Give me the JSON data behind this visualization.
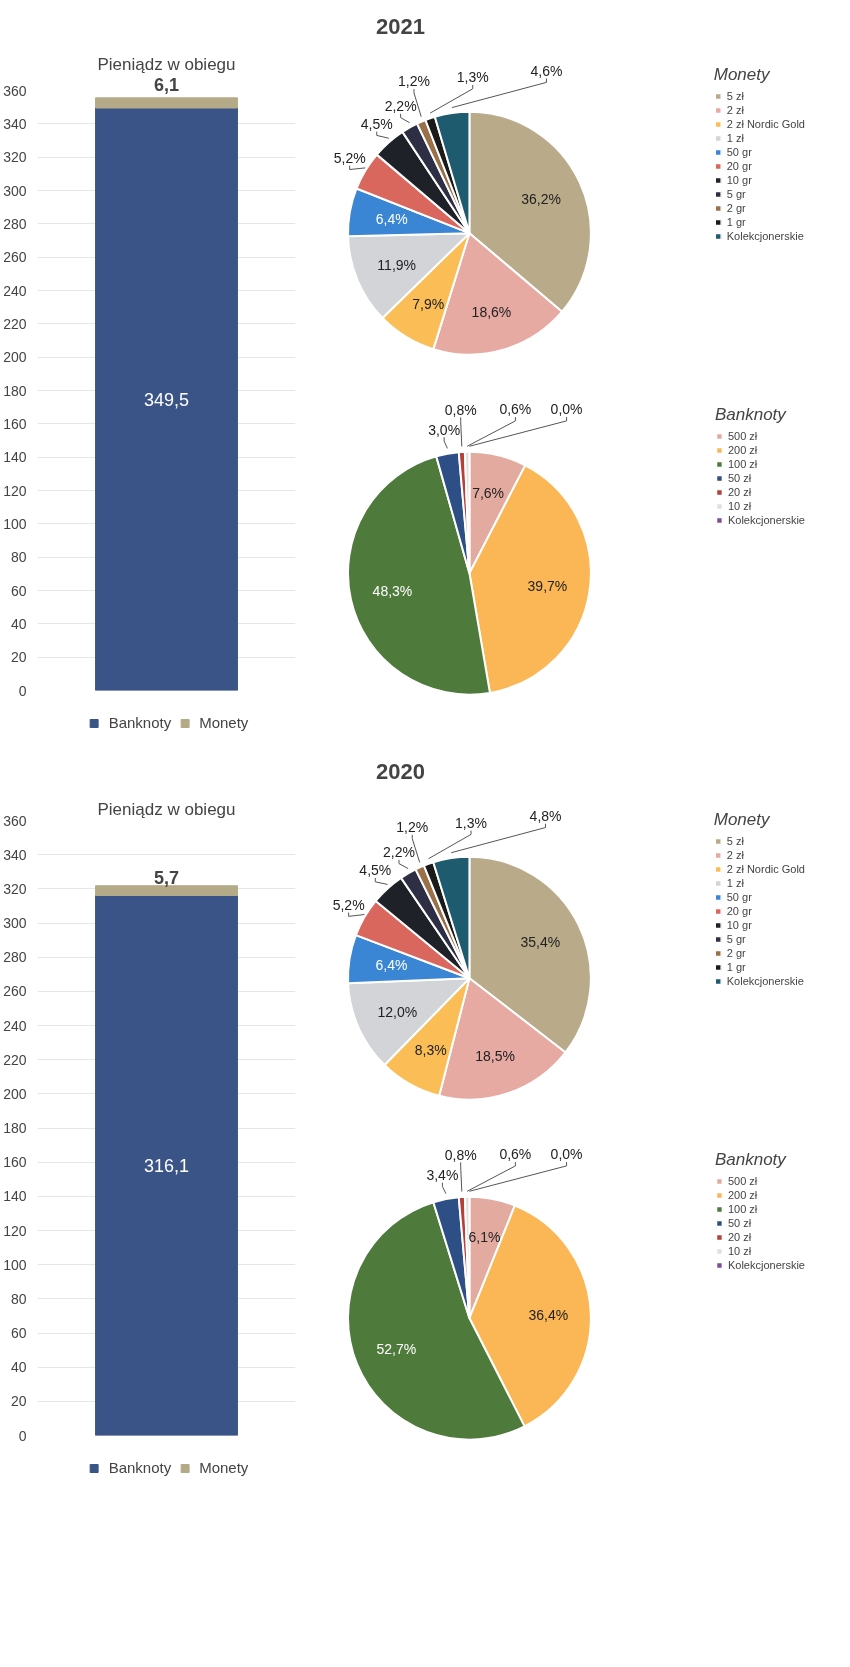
{
  "chart_data": [
    {
      "type": "bar",
      "title": "Pieniądz w obiegu",
      "annotations": [
        "2021"
      ],
      "categories": [
        null
      ],
      "stacked": true,
      "ylim": [
        0,
        360
      ],
      "yticks": [
        0,
        20,
        40,
        60,
        80,
        100,
        120,
        140,
        160,
        180,
        200,
        220,
        240,
        260,
        280,
        300,
        320,
        340,
        360
      ],
      "grid": "y",
      "legend": "bottom",
      "tick_labels": "y",
      "series": [
        {
          "name": "Banknoty",
          "color": "#3b5488",
          "values": [
            349.5
          ],
          "value_labels": [
            "349,5"
          ]
        },
        {
          "name": "Monety",
          "color": "#b5aa88",
          "values": [
            6.1
          ],
          "value_labels": [
            "6,1"
          ]
        }
      ]
    },
    {
      "type": "pie",
      "legend_title": "Monety",
      "legend": "right",
      "categories": [
        "5 zł",
        "2 zł",
        "2 zł Nordic Gold",
        "1 zł",
        "50 gr",
        "20 gr",
        "10 gr",
        "5 gr",
        "2 gr",
        "1 gr",
        "Kolekcjonerskie"
      ],
      "values": [
        36.2,
        18.6,
        7.9,
        11.9,
        6.4,
        5.2,
        4.5,
        2.2,
        1.2,
        1.3,
        4.6
      ],
      "value_labels": [
        "36,2%",
        "18,6%",
        "7,9%",
        "11,9%",
        "6,4%",
        "5,2%",
        "4,5%",
        "2,2%",
        "1,2%",
        "1,3%",
        "4,6%"
      ],
      "colors": [
        "#b9aa8a",
        "#e6aaa2",
        "#fbbd55",
        "#d2d4d8",
        "#3a86d4",
        "#d9675e",
        "#1e2228",
        "#2e2f45",
        "#9a7048",
        "#1a1a1a",
        "#1f5b6e"
      ]
    },
    {
      "type": "pie",
      "legend_title": "Banknoty",
      "legend": "right",
      "categories": [
        "500 zł",
        "200 zł",
        "100 zł",
        "50 zł",
        "20 zł",
        "10 zł",
        "Kolekcjonerskie"
      ],
      "values": [
        7.6,
        39.7,
        48.3,
        3.0,
        0.8,
        0.6,
        0.0
      ],
      "value_labels": [
        "7,6%",
        "39,7%",
        "48,3%",
        "3,0%",
        "0,8%",
        "0,6%",
        "0,0%"
      ],
      "colors": [
        "#e3aaa0",
        "#fbb656",
        "#4e7a3c",
        "#2d4f86",
        "#b5403a",
        "#e0e0e0",
        "#7a4f9a"
      ]
    },
    {
      "type": "bar",
      "title": "Pieniądz w obiegu",
      "annotations": [
        "2020"
      ],
      "categories": [
        null
      ],
      "stacked": true,
      "ylim": [
        0,
        360
      ],
      "yticks": [
        0,
        20,
        40,
        60,
        80,
        100,
        120,
        140,
        160,
        180,
        200,
        220,
        240,
        260,
        280,
        300,
        320,
        340,
        360
      ],
      "grid": "y",
      "legend": "bottom",
      "tick_labels": "y",
      "series": [
        {
          "name": "Banknoty",
          "color": "#3b5488",
          "values": [
            316.1
          ],
          "value_labels": [
            "316,1"
          ]
        },
        {
          "name": "Monety",
          "color": "#b5aa88",
          "values": [
            5.7
          ],
          "value_labels": [
            "5,7"
          ]
        }
      ]
    },
    {
      "type": "pie",
      "legend_title": "Monety",
      "legend": "right",
      "categories": [
        "5 zł",
        "2 zł",
        "2 zł Nordic Gold",
        "1 zł",
        "50 gr",
        "20 gr",
        "10 gr",
        "5 gr",
        "2 gr",
        "1 gr",
        "Kolekcjonerskie"
      ],
      "values": [
        35.4,
        18.5,
        8.3,
        12.0,
        6.4,
        5.2,
        4.5,
        2.2,
        1.2,
        1.3,
        4.8
      ],
      "value_labels": [
        "35,4%",
        "18,5%",
        "8,3%",
        "12,0%",
        "6,4%",
        "5,2%",
        "4,5%",
        "2,2%",
        "1,2%",
        "1,3%",
        "4,8%"
      ],
      "colors": [
        "#b9aa8a",
        "#e6aaa2",
        "#fbbd55",
        "#d2d4d8",
        "#3a86d4",
        "#d9675e",
        "#1e2228",
        "#2e2f45",
        "#9a7048",
        "#1a1a1a",
        "#1f5b6e"
      ]
    },
    {
      "type": "pie",
      "legend_title": "Banknoty",
      "legend": "right",
      "categories": [
        "500 zł",
        "200 zł",
        "100 zł",
        "50 zł",
        "20 zł",
        "10 zł",
        "Kolekcjonerskie"
      ],
      "values": [
        6.1,
        36.4,
        52.7,
        3.4,
        0.8,
        0.6,
        0.0
      ],
      "value_labels": [
        "6,1%",
        "36,4%",
        "52,7%",
        "3,4%",
        "0,8%",
        "0,6%",
        "0,0%"
      ],
      "colors": [
        "#e3aaa0",
        "#fbb656",
        "#4e7a3c",
        "#2d4f86",
        "#b5403a",
        "#e0e0e0",
        "#7a4f9a"
      ]
    }
  ]
}
